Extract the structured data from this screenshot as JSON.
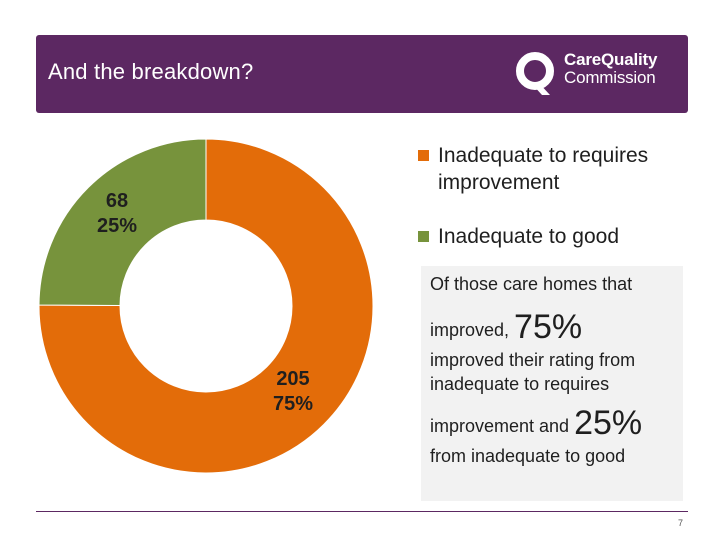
{
  "header": {
    "title": "And the breakdown?",
    "logo": {
      "line1": "CareQuality",
      "line2": "Commission",
      "icon": "cqc-logo-icon"
    }
  },
  "chart_data": {
    "type": "pie",
    "style": "donut",
    "categories": [
      "Inadequate to requires improvement",
      "Inadequate to good"
    ],
    "values": [
      205,
      68
    ],
    "percentages": [
      "75%",
      "25%"
    ],
    "colors": [
      "#e36c09",
      "#77933c"
    ],
    "data_labels": [
      {
        "value": "205",
        "percent": "75%"
      },
      {
        "value": "68",
        "percent": "25%"
      }
    ],
    "legend_position": "right"
  },
  "legend": {
    "items": [
      {
        "label": "Inadequate to requires improvement",
        "color": "#e36c09"
      },
      {
        "label": "Inadequate to good",
        "color": "#77933c"
      }
    ]
  },
  "note": {
    "line1": "Of those care homes that",
    "line2_text": "improved,",
    "line2_big": "75%",
    "line3": "improved their rating from",
    "line4": "inadequate to requires",
    "line5_text": "improvement and",
    "line5_big": "25%",
    "line6": "from inadequate to good"
  },
  "footer": {
    "page_number": "7"
  },
  "colors": {
    "brand_purple": "#5c2862",
    "note_background": "#f2f2f2"
  }
}
